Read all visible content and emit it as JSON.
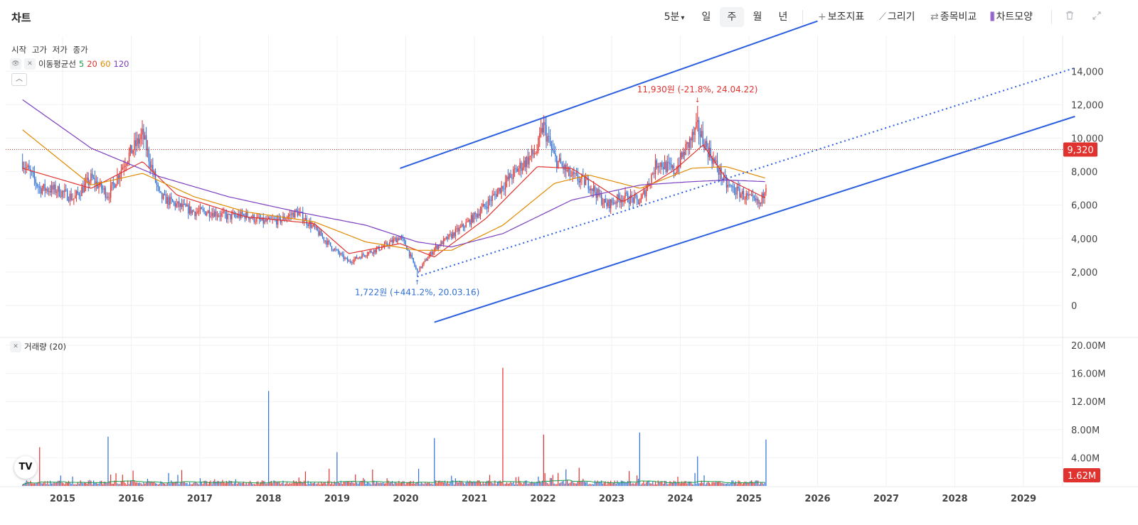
{
  "header": {
    "title": "차트",
    "interval_label": "5분",
    "periods": [
      "일",
      "주",
      "월",
      "년"
    ],
    "active_period": "주",
    "tools": [
      {
        "label": "보조지표",
        "icon": "plus-icon"
      },
      {
        "label": "그리기",
        "icon": "pencil-icon"
      },
      {
        "label": "종목비교",
        "icon": "compare-icon"
      },
      {
        "label": "차트모양",
        "icon": "candle-icon"
      }
    ],
    "trash_icon": "trash-icon",
    "expand_icon": "expand-icon"
  },
  "legend": {
    "ohlc": [
      "시작",
      "고가",
      "저가",
      "종가"
    ],
    "ma_title": "이동평균선",
    "ma_periods": [
      "5",
      "20",
      "60",
      "120"
    ],
    "volume_title": "거래량 (20)"
  },
  "colors": {
    "up": "#e0322e",
    "down": "#2f6fd6",
    "ma5": "#1a9c4a",
    "ma20": "#e0322e",
    "ma60": "#e08a00",
    "ma120": "#7b3fbf",
    "trendline": "#2b5fe0",
    "volume_ma": "#1a9c4a"
  },
  "chart_data": [
    {
      "type": "line",
      "subtype": "weekly candlestick with moving averages",
      "x_tick_labels": [
        "2015",
        "2016",
        "2017",
        "2018",
        "2019",
        "2020",
        "2021",
        "2022",
        "2023",
        "2024",
        "2025",
        "2026",
        "2027",
        "2028",
        "2029"
      ],
      "y_tick_labels": [
        "0",
        "2,000",
        "4,000",
        "6,000",
        "8,000",
        "10,000",
        "12,000",
        "14,000"
      ],
      "ylim": [
        -1000,
        15500
      ],
      "current_price": 9320,
      "current_price_label": "9,320",
      "annotations": {
        "high": {
          "label": "11,930원 (-21.8%, 24.04.22)",
          "date": "2024-04-22",
          "value": 11930
        },
        "low": {
          "label": "1,722원 (+441.2%, 20.03.16)",
          "date": "2020-03-16",
          "value": 1722
        }
      },
      "close_path": [
        [
          "2014-06",
          8600
        ],
        [
          "2014-09",
          7000
        ],
        [
          "2014-12",
          6900
        ],
        [
          "2015-03",
          6400
        ],
        [
          "2015-06",
          7600
        ],
        [
          "2015-09",
          6600
        ],
        [
          "2015-12",
          8700
        ],
        [
          "2016-03",
          10200
        ],
        [
          "2016-06",
          6500
        ],
        [
          "2016-09",
          6000
        ],
        [
          "2016-12",
          5600
        ],
        [
          "2017-03",
          5600
        ],
        [
          "2017-06",
          5300
        ],
        [
          "2017-09",
          5400
        ],
        [
          "2017-12",
          5000
        ],
        [
          "2018-03",
          5100
        ],
        [
          "2018-06",
          5600
        ],
        [
          "2018-09",
          4600
        ],
        [
          "2018-12",
          3500
        ],
        [
          "2019-03",
          2600
        ],
        [
          "2019-06",
          3100
        ],
        [
          "2019-09",
          3500
        ],
        [
          "2019-12",
          4100
        ],
        [
          "2020-01",
          3600
        ],
        [
          "2020-03",
          2000
        ],
        [
          "2020-06",
          3400
        ],
        [
          "2020-09",
          4200
        ],
        [
          "2020-12",
          5000
        ],
        [
          "2021-03",
          6000
        ],
        [
          "2021-06",
          7200
        ],
        [
          "2021-09",
          8300
        ],
        [
          "2021-12",
          9300
        ],
        [
          "2022-01",
          10800
        ],
        [
          "2022-03",
          8800
        ],
        [
          "2022-06",
          7700
        ],
        [
          "2022-09",
          7300
        ],
        [
          "2022-12",
          6000
        ],
        [
          "2023-03",
          6500
        ],
        [
          "2023-06",
          6200
        ],
        [
          "2023-09",
          8600
        ],
        [
          "2023-12",
          8000
        ],
        [
          "2024-02",
          9400
        ],
        [
          "2024-04",
          10600
        ],
        [
          "2024-06",
          9200
        ],
        [
          "2024-09",
          7200
        ],
        [
          "2024-12",
          6600
        ],
        [
          "2025-03",
          6000
        ],
        [
          "2025-04",
          7400
        ]
      ],
      "moving_averages": [
        {
          "name": "20",
          "values": [
            [
              "2014-06",
              8200
            ],
            [
              "2015-06",
              7000
            ],
            [
              "2016-03",
              8600
            ],
            [
              "2016-09",
              6600
            ],
            [
              "2017-09",
              5300
            ],
            [
              "2018-09",
              4900
            ],
            [
              "2019-03",
              3100
            ],
            [
              "2019-12",
              3700
            ],
            [
              "2020-06",
              2900
            ],
            [
              "2021-03",
              5200
            ],
            [
              "2021-12",
              8300
            ],
            [
              "2022-06",
              8200
            ],
            [
              "2023-03",
              6200
            ],
            [
              "2023-12",
              8100
            ],
            [
              "2024-05",
              9600
            ],
            [
              "2024-09",
              7600
            ],
            [
              "2025-04",
              6400
            ]
          ]
        },
        {
          "name": "60",
          "values": [
            [
              "2014-06",
              10500
            ],
            [
              "2015-06",
              7200
            ],
            [
              "2016-03",
              7900
            ],
            [
              "2016-12",
              6500
            ],
            [
              "2017-09",
              5600
            ],
            [
              "2018-09",
              5000
            ],
            [
              "2019-06",
              3800
            ],
            [
              "2020-03",
              3300
            ],
            [
              "2020-09",
              3300
            ],
            [
              "2021-06",
              4800
            ],
            [
              "2022-03",
              7300
            ],
            [
              "2022-09",
              7800
            ],
            [
              "2023-06",
              7000
            ],
            [
              "2024-03",
              8200
            ],
            [
              "2024-09",
              8300
            ],
            [
              "2025-04",
              7600
            ]
          ]
        },
        {
          "name": "120",
          "values": [
            [
              "2014-06",
              12300
            ],
            [
              "2015-06",
              9400
            ],
            [
              "2016-06",
              7700
            ],
            [
              "2017-06",
              6500
            ],
            [
              "2018-06",
              5600
            ],
            [
              "2019-06",
              4800
            ],
            [
              "2020-03",
              3800
            ],
            [
              "2020-09",
              3500
            ],
            [
              "2021-06",
              4300
            ],
            [
              "2022-06",
              6300
            ],
            [
              "2023-06",
              7200
            ],
            [
              "2024-03",
              7400
            ],
            [
              "2024-09",
              7500
            ],
            [
              "2025-04",
              7400
            ]
          ]
        }
      ],
      "trendlines": [
        {
          "style": "solid",
          "from": [
            "2019-12",
            8200
          ],
          "to": [
            "2026-01",
            17000
          ]
        },
        {
          "style": "dotted",
          "from": [
            "2020-03",
            1722
          ],
          "to": [
            "2029-10",
            14200
          ]
        },
        {
          "style": "solid",
          "from": [
            "2020-06",
            -1000
          ],
          "to": [
            "2029-10",
            11300
          ]
        }
      ]
    },
    {
      "type": "bar",
      "title": "거래량 (20)",
      "y_tick_labels": [
        "4.00M",
        "8.00M",
        "12.00M",
        "16.00M",
        "20.00M"
      ],
      "ylim": [
        0,
        20
      ],
      "unit": "M",
      "current_volume_label": "1.62M",
      "spikes": [
        {
          "date": "2014-09",
          "value": 5.5
        },
        {
          "date": "2015-09",
          "value": 7.0
        },
        {
          "date": "2018-01",
          "value": 13.5
        },
        {
          "date": "2019-01",
          "value": 4.8
        },
        {
          "date": "2020-06",
          "value": 6.8
        },
        {
          "date": "2021-06",
          "value": 16.8
        },
        {
          "date": "2022-01",
          "value": 7.3
        },
        {
          "date": "2023-06",
          "value": 7.6
        },
        {
          "date": "2024-04",
          "value": 4.2
        },
        {
          "date": "2025-04",
          "value": 6.6
        }
      ]
    }
  ]
}
